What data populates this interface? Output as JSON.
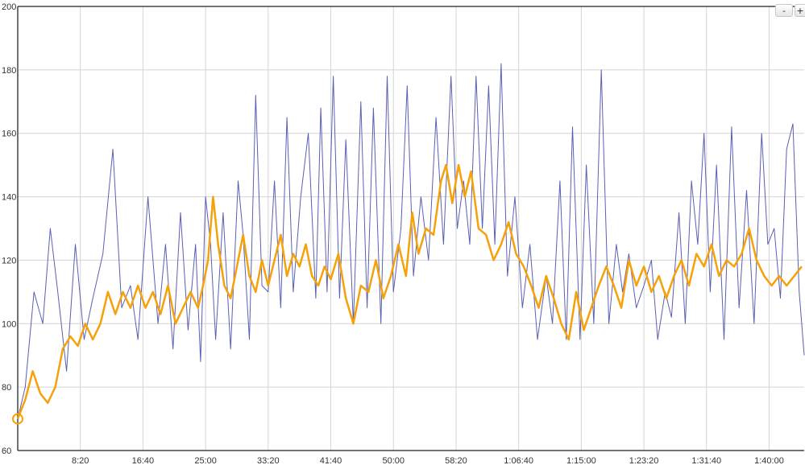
{
  "controls": {
    "zoom_out": "-",
    "zoom_in": "+"
  },
  "chart_data": {
    "type": "line",
    "title": "",
    "xlabel": "",
    "ylabel": "",
    "x_unit": "seconds",
    "xlim": [
      0,
      6280
    ],
    "ylim": [
      60,
      200
    ],
    "y_ticks": [
      60,
      80,
      100,
      120,
      140,
      160,
      180,
      200
    ],
    "x_ticks": [
      {
        "value": 500,
        "label": "8:20"
      },
      {
        "value": 1000,
        "label": "16:40"
      },
      {
        "value": 1500,
        "label": "25:00"
      },
      {
        "value": 2000,
        "label": "33:20"
      },
      {
        "value": 2500,
        "label": "41:40"
      },
      {
        "value": 3000,
        "label": "50:00"
      },
      {
        "value": 3500,
        "label": "58:20"
      },
      {
        "value": 4000,
        "label": "1:06:40"
      },
      {
        "value": 4500,
        "label": "1:15:00"
      },
      {
        "value": 5000,
        "label": "1:23:20"
      },
      {
        "value": 5500,
        "label": "1:31:40"
      },
      {
        "value": 6000,
        "label": "1:40:00"
      }
    ],
    "grid": true,
    "legend": "none",
    "series": [
      {
        "color": "#5b5fb4",
        "points": [
          [
            0,
            70
          ],
          [
            60,
            80
          ],
          [
            130,
            110
          ],
          [
            200,
            100
          ],
          [
            260,
            130
          ],
          [
            320,
            110
          ],
          [
            390,
            85
          ],
          [
            460,
            125
          ],
          [
            530,
            95
          ],
          [
            600,
            108
          ],
          [
            680,
            122
          ],
          [
            760,
            155
          ],
          [
            830,
            105
          ],
          [
            900,
            112
          ],
          [
            960,
            95
          ],
          [
            1040,
            140
          ],
          [
            1120,
            100
          ],
          [
            1180,
            125
          ],
          [
            1240,
            92
          ],
          [
            1300,
            135
          ],
          [
            1360,
            98
          ],
          [
            1420,
            125
          ],
          [
            1460,
            88
          ],
          [
            1500,
            140
          ],
          [
            1540,
            125
          ],
          [
            1580,
            95
          ],
          [
            1640,
            135
          ],
          [
            1700,
            92
          ],
          [
            1760,
            145
          ],
          [
            1800,
            128
          ],
          [
            1850,
            95
          ],
          [
            1900,
            172
          ],
          [
            1950,
            112
          ],
          [
            2000,
            110
          ],
          [
            2050,
            145
          ],
          [
            2100,
            105
          ],
          [
            2150,
            165
          ],
          [
            2200,
            110
          ],
          [
            2260,
            140
          ],
          [
            2320,
            160
          ],
          [
            2380,
            108
          ],
          [
            2420,
            168
          ],
          [
            2470,
            110
          ],
          [
            2520,
            178
          ],
          [
            2570,
            108
          ],
          [
            2620,
            158
          ],
          [
            2680,
            100
          ],
          [
            2740,
            170
          ],
          [
            2790,
            105
          ],
          [
            2840,
            168
          ],
          [
            2900,
            100
          ],
          [
            2950,
            178
          ],
          [
            3000,
            110
          ],
          [
            3060,
            130
          ],
          [
            3110,
            175
          ],
          [
            3160,
            115
          ],
          [
            3220,
            140
          ],
          [
            3280,
            120
          ],
          [
            3340,
            165
          ],
          [
            3400,
            125
          ],
          [
            3460,
            178
          ],
          [
            3510,
            130
          ],
          [
            3560,
            145
          ],
          [
            3610,
            125
          ],
          [
            3660,
            178
          ],
          [
            3710,
            130
          ],
          [
            3760,
            175
          ],
          [
            3810,
            125
          ],
          [
            3860,
            182
          ],
          [
            3910,
            115
          ],
          [
            3970,
            140
          ],
          [
            4030,
            105
          ],
          [
            4090,
            125
          ],
          [
            4150,
            95
          ],
          [
            4220,
            115
          ],
          [
            4270,
            100
          ],
          [
            4330,
            145
          ],
          [
            4380,
            95
          ],
          [
            4430,
            162
          ],
          [
            4490,
            95
          ],
          [
            4540,
            150
          ],
          [
            4600,
            100
          ],
          [
            4660,
            180
          ],
          [
            4720,
            100
          ],
          [
            4780,
            125
          ],
          [
            4830,
            110
          ],
          [
            4880,
            122
          ],
          [
            4940,
            105
          ],
          [
            5000,
            112
          ],
          [
            5060,
            120
          ],
          [
            5110,
            95
          ],
          [
            5170,
            110
          ],
          [
            5220,
            102
          ],
          [
            5280,
            135
          ],
          [
            5330,
            100
          ],
          [
            5380,
            145
          ],
          [
            5430,
            125
          ],
          [
            5480,
            160
          ],
          [
            5530,
            110
          ],
          [
            5580,
            150
          ],
          [
            5640,
            95
          ],
          [
            5700,
            162
          ],
          [
            5760,
            105
          ],
          [
            5820,
            142
          ],
          [
            5880,
            100
          ],
          [
            5940,
            160
          ],
          [
            5990,
            125
          ],
          [
            6040,
            130
          ],
          [
            6090,
            108
          ],
          [
            6140,
            155
          ],
          [
            6190,
            163
          ],
          [
            6240,
            110
          ],
          [
            6280,
            90
          ]
        ]
      },
      {
        "color": "#f5a10a",
        "points": [
          [
            0,
            70
          ],
          [
            60,
            76
          ],
          [
            120,
            85
          ],
          [
            180,
            78
          ],
          [
            240,
            75
          ],
          [
            300,
            80
          ],
          [
            360,
            92
          ],
          [
            420,
            96
          ],
          [
            480,
            93
          ],
          [
            540,
            100
          ],
          [
            600,
            95
          ],
          [
            660,
            100
          ],
          [
            720,
            110
          ],
          [
            780,
            103
          ],
          [
            840,
            110
          ],
          [
            900,
            105
          ],
          [
            960,
            112
          ],
          [
            1020,
            105
          ],
          [
            1080,
            110
          ],
          [
            1140,
            103
          ],
          [
            1200,
            112
          ],
          [
            1260,
            100
          ],
          [
            1320,
            105
          ],
          [
            1380,
            110
          ],
          [
            1440,
            105
          ],
          [
            1480,
            112
          ],
          [
            1520,
            120
          ],
          [
            1560,
            140
          ],
          [
            1600,
            125
          ],
          [
            1650,
            112
          ],
          [
            1700,
            108
          ],
          [
            1750,
            118
          ],
          [
            1800,
            128
          ],
          [
            1850,
            115
          ],
          [
            1900,
            110
          ],
          [
            1950,
            120
          ],
          [
            2000,
            112
          ],
          [
            2050,
            120
          ],
          [
            2100,
            128
          ],
          [
            2150,
            115
          ],
          [
            2200,
            122
          ],
          [
            2250,
            118
          ],
          [
            2300,
            125
          ],
          [
            2350,
            115
          ],
          [
            2400,
            112
          ],
          [
            2450,
            118
          ],
          [
            2500,
            114
          ],
          [
            2560,
            122
          ],
          [
            2620,
            108
          ],
          [
            2680,
            100
          ],
          [
            2740,
            112
          ],
          [
            2800,
            110
          ],
          [
            2860,
            120
          ],
          [
            2920,
            108
          ],
          [
            2980,
            115
          ],
          [
            3040,
            125
          ],
          [
            3100,
            115
          ],
          [
            3150,
            135
          ],
          [
            3200,
            122
          ],
          [
            3260,
            130
          ],
          [
            3320,
            128
          ],
          [
            3380,
            145
          ],
          [
            3420,
            150
          ],
          [
            3470,
            138
          ],
          [
            3520,
            150
          ],
          [
            3570,
            140
          ],
          [
            3620,
            148
          ],
          [
            3680,
            130
          ],
          [
            3740,
            128
          ],
          [
            3800,
            120
          ],
          [
            3860,
            125
          ],
          [
            3920,
            132
          ],
          [
            3980,
            122
          ],
          [
            4040,
            118
          ],
          [
            4100,
            112
          ],
          [
            4160,
            105
          ],
          [
            4220,
            115
          ],
          [
            4280,
            108
          ],
          [
            4340,
            100
          ],
          [
            4400,
            95
          ],
          [
            4460,
            110
          ],
          [
            4520,
            98
          ],
          [
            4580,
            105
          ],
          [
            4640,
            112
          ],
          [
            4700,
            118
          ],
          [
            4760,
            112
          ],
          [
            4820,
            105
          ],
          [
            4880,
            120
          ],
          [
            4940,
            112
          ],
          [
            5000,
            118
          ],
          [
            5060,
            110
          ],
          [
            5120,
            115
          ],
          [
            5180,
            108
          ],
          [
            5240,
            115
          ],
          [
            5300,
            120
          ],
          [
            5360,
            112
          ],
          [
            5420,
            122
          ],
          [
            5480,
            118
          ],
          [
            5540,
            125
          ],
          [
            5600,
            115
          ],
          [
            5660,
            120
          ],
          [
            5720,
            118
          ],
          [
            5780,
            122
          ],
          [
            5840,
            130
          ],
          [
            5900,
            120
          ],
          [
            5960,
            115
          ],
          [
            6020,
            112
          ],
          [
            6080,
            115
          ],
          [
            6140,
            112
          ],
          [
            6200,
            115
          ],
          [
            6260,
            118
          ]
        ]
      }
    ]
  }
}
